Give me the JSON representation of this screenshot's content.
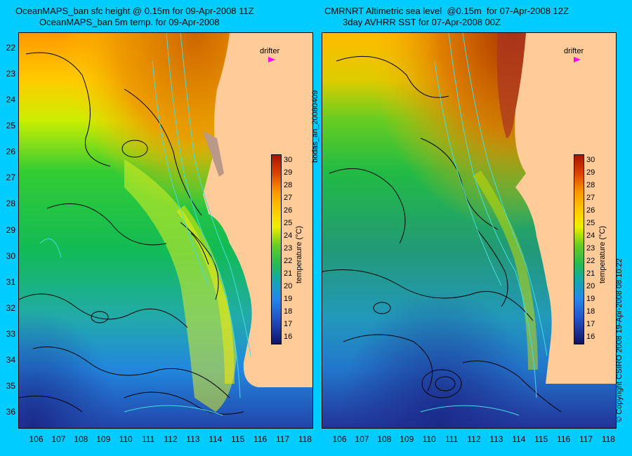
{
  "left_panel": {
    "title_line1": "OceanMAPS_ban sfc height @ 0.15m for 09-Apr-2008 11Z",
    "title_line2": "OceanMAPS_ban 5m temp. for 09-Apr-2008",
    "drifter_label": "drifter",
    "colorbar_title": "temperature (°C)"
  },
  "right_panel": {
    "title_line1": "CMRNRT Altimetric sea level  @0.15m  for 07-Apr-2008 12Z",
    "title_line2": "3day AVHRR SST for 07-Apr-2008 00Z",
    "drifter_label": "drifter",
    "colorbar_title": "temperature (°C)"
  },
  "side_label": "bodas_an_20080409",
  "copyright": "© Copyright CSIRO 2008   19-Apr-2008 08:10:22",
  "axes": {
    "latitude_ticks": [
      "22",
      "23",
      "24",
      "25",
      "26",
      "27",
      "28",
      "29",
      "30",
      "31",
      "32",
      "33",
      "34",
      "35",
      "36"
    ],
    "longitude_ticks": [
      "106",
      "107",
      "108",
      "109",
      "110",
      "111",
      "112",
      "113",
      "114",
      "115",
      "116",
      "117",
      "118"
    ],
    "lat_range": [
      21.4,
      36.6
    ],
    "lon_range": [
      105.2,
      118.3
    ]
  },
  "colorbar": {
    "ticks": [
      "30",
      "29",
      "28",
      "27",
      "26",
      "25",
      "24",
      "23",
      "22",
      "21",
      "20",
      "19",
      "18",
      "17",
      "16"
    ],
    "range": [
      15.5,
      30.5
    ]
  },
  "colors": {
    "background": "#00ccff",
    "land": "#ffcc99",
    "contour": "#000000",
    "bathymetry": "#44dddd",
    "drifter": "#ff00ff"
  }
}
